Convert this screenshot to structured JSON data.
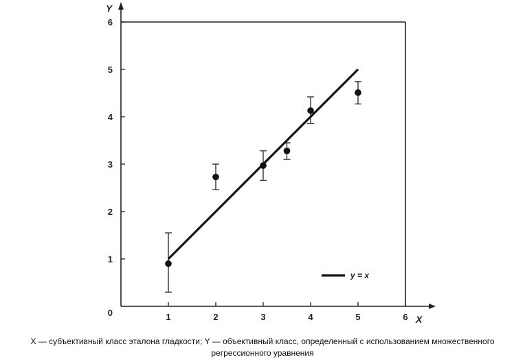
{
  "chart_data": {
    "type": "scatter",
    "title": "",
    "xlabel": "X",
    "ylabel": "Y",
    "xlim": [
      0,
      6
    ],
    "ylim": [
      0,
      6
    ],
    "x_ticks": [
      "1",
      "2",
      "3",
      "4",
      "5",
      "6"
    ],
    "y_ticks": [
      "1",
      "2",
      "3",
      "4",
      "5",
      "6"
    ],
    "origin_label": "0",
    "grid": false,
    "legend_position": "bottom-right",
    "points": [
      {
        "x": 1.0,
        "y": 0.9,
        "err_low": 0.3,
        "err_high": 1.55
      },
      {
        "x": 2.0,
        "y": 2.73,
        "err_low": 2.46,
        "err_high": 3.0
      },
      {
        "x": 3.0,
        "y": 2.97,
        "err_low": 2.66,
        "err_high": 3.28
      },
      {
        "x": 3.5,
        "y": 3.28,
        "err_low": 3.1,
        "err_high": 3.45
      },
      {
        "x": 4.0,
        "y": 4.13,
        "err_low": 3.86,
        "err_high": 4.42
      },
      {
        "x": 5.0,
        "y": 4.51,
        "err_low": 4.27,
        "err_high": 4.74
      }
    ],
    "line": {
      "name": "y = x",
      "x": [
        1,
        5
      ],
      "y": [
        1,
        5
      ]
    }
  },
  "caption": {
    "line1": "X — субъективный класс эталона гладкости; Y — объективный класс, определенный с использованием множественного",
    "line2": "регрессионного уравнения"
  },
  "colors": {
    "ink": "#111111",
    "axis": "#222222"
  }
}
